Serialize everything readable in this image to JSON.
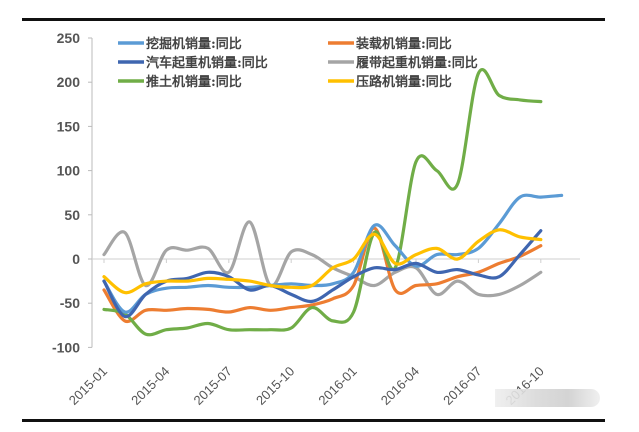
{
  "chart_data": {
    "type": "line",
    "title": "",
    "xlabel": "",
    "ylabel": "",
    "ylim": [
      -100,
      250
    ],
    "yticks": [
      250,
      200,
      150,
      100,
      50,
      0,
      -50,
      -100
    ],
    "xtick_labels": [
      "2015-01",
      "2015-04",
      "2015-07",
      "2015-10",
      "2016-01",
      "2016-04",
      "2016-07",
      "2016-10"
    ],
    "x": [
      "2015-01",
      "2015-02",
      "2015-03",
      "2015-04",
      "2015-05",
      "2015-06",
      "2015-07",
      "2015-08",
      "2015-09",
      "2015-10",
      "2015-11",
      "2015-12",
      "2016-01",
      "2016-02",
      "2016-03",
      "2016-04",
      "2016-05",
      "2016-06",
      "2016-07",
      "2016-08",
      "2016-09",
      "2016-10",
      "2016-11"
    ],
    "grid": false,
    "legend_position": "top",
    "series": [
      {
        "name": "挖掘机销量:同比",
        "color": "#5B9BD5",
        "values": [
          -25,
          -60,
          -40,
          -33,
          -32,
          -30,
          -32,
          -32,
          -30,
          -28,
          -30,
          -28,
          -15,
          38,
          15,
          -8,
          5,
          5,
          12,
          40,
          70,
          70,
          72
        ]
      },
      {
        "name": "装载机销量:同比",
        "color": "#ED7D31",
        "values": [
          -35,
          -70,
          -58,
          -58,
          -56,
          -57,
          -60,
          -55,
          -58,
          -55,
          -52,
          -45,
          -30,
          35,
          -35,
          -30,
          -28,
          -20,
          -15,
          -5,
          3,
          15
        ]
      },
      {
        "name": "汽车起重机销量:同比",
        "color": "#3F66B0",
        "values": [
          -25,
          -65,
          -40,
          -25,
          -22,
          -15,
          -20,
          -35,
          -30,
          -40,
          -48,
          -35,
          -20,
          -10,
          -12,
          -5,
          -15,
          -12,
          -18,
          -20,
          5,
          32
        ]
      },
      {
        "name": "履带起重机销量:同比",
        "color": "#A5A5A5",
        "values": [
          5,
          30,
          -30,
          10,
          10,
          12,
          -15,
          42,
          -30,
          8,
          5,
          -10,
          -20,
          -30,
          -15,
          -10,
          -40,
          -25,
          -40,
          -40,
          -30,
          -15
        ]
      },
      {
        "name": "推土机销量:同比",
        "color": "#70AD47",
        "values": [
          -57,
          -62,
          -85,
          -80,
          -78,
          -73,
          -80,
          -80,
          -80,
          -78,
          -55,
          -70,
          -60,
          30,
          -10,
          110,
          100,
          85,
          210,
          185,
          180,
          178
        ]
      },
      {
        "name": "压路机销量:同比",
        "color": "#FFC000",
        "values": [
          -20,
          -38,
          -28,
          -25,
          -25,
          -22,
          -23,
          -25,
          -30,
          -32,
          -30,
          -10,
          0,
          28,
          -5,
          5,
          12,
          0,
          20,
          33,
          25,
          22
        ]
      }
    ]
  },
  "legend": {
    "items": [
      {
        "label": "挖掘机销量:同比",
        "color": "#5B9BD5"
      },
      {
        "label": "装载机销量:同比",
        "color": "#ED7D31"
      },
      {
        "label": "汽车起重机销量:同比",
        "color": "#3F66B0"
      },
      {
        "label": "履带起重机销量:同比",
        "color": "#A5A5A5"
      },
      {
        "label": "推土机销量:同比",
        "color": "#70AD47"
      },
      {
        "label": "压路机销量:同比",
        "color": "#FFC000"
      }
    ]
  }
}
